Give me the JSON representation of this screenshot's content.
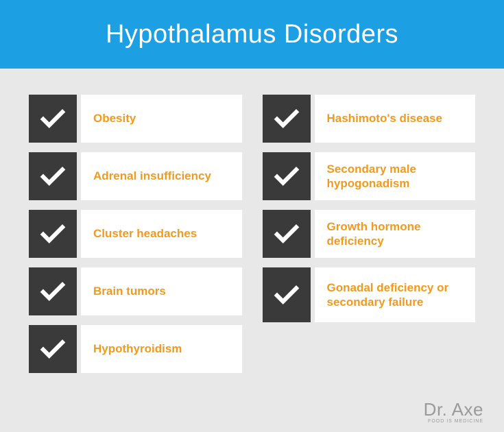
{
  "header": {
    "title": "Hypothalamus Disorders",
    "background_color": "#1ca0e3",
    "text_color": "#ffffff",
    "font_size": 38
  },
  "columns": {
    "left": [
      {
        "label": "Obesity"
      },
      {
        "label": "Adrenal insufficiency"
      },
      {
        "label": "Cluster headaches"
      },
      {
        "label": "Brain tumors"
      },
      {
        "label": "Hypothyroidism"
      }
    ],
    "right": [
      {
        "label": "Hashimoto's disease"
      },
      {
        "label": "Secondary male hypogonadism"
      },
      {
        "label": "Growth hormone deficiency"
      },
      {
        "label": "Gonadal deficiency or secondary failure",
        "tall": true
      }
    ]
  },
  "styling": {
    "checkbox_bg": "#3a3a3a",
    "check_color": "#ffffff",
    "label_bg": "#ffffff",
    "label_color": "#f09a1e",
    "label_font_size": 17,
    "page_bg": "#e8e8e8"
  },
  "attribution": {
    "main": "Dr. Axe",
    "sub": "FOOD IS MEDICINE",
    "color": "#9a9a9a",
    "font_size": 26,
    "sub_font_size": 7
  }
}
